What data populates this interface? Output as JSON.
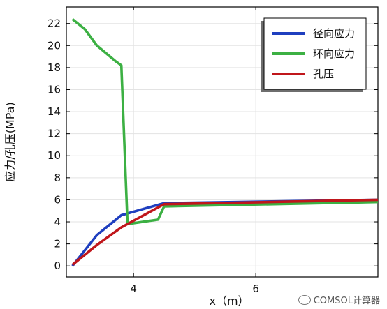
{
  "chart_data": {
    "type": "line",
    "xlabel": "x（m）",
    "ylabel": "应力/孔压(MPa)",
    "xlim": [
      2.9,
      8.0
    ],
    "ylim": [
      -1,
      23.5
    ],
    "xticks": [
      4,
      6
    ],
    "yticks": [
      0,
      2,
      4,
      6,
      8,
      10,
      12,
      14,
      16,
      18,
      20,
      22
    ],
    "grid": true,
    "legend_position": "top-right",
    "series": [
      {
        "name": "径向应力",
        "color": "#1f3fbf",
        "x": [
          3.0,
          3.4,
          3.8,
          4.5,
          8.0
        ],
        "y": [
          0,
          2.8,
          4.6,
          5.7,
          6.0
        ]
      },
      {
        "name": "环向应力",
        "color": "#3cb043",
        "x": [
          3.0,
          3.2,
          3.4,
          3.7,
          3.8,
          3.9,
          4.4,
          4.5,
          8.0
        ],
        "y": [
          22.4,
          21.5,
          20.0,
          18.6,
          18.2,
          3.8,
          4.2,
          5.4,
          5.8
        ]
      },
      {
        "name": "孔压",
        "color": "#c0161b",
        "x": [
          3.0,
          3.4,
          3.8,
          4.5,
          8.0
        ],
        "y": [
          0.1,
          1.9,
          3.5,
          5.6,
          6.0
        ]
      }
    ]
  },
  "watermark": {
    "text": "COMSOL计算器",
    "icon": "wechat-icon"
  }
}
